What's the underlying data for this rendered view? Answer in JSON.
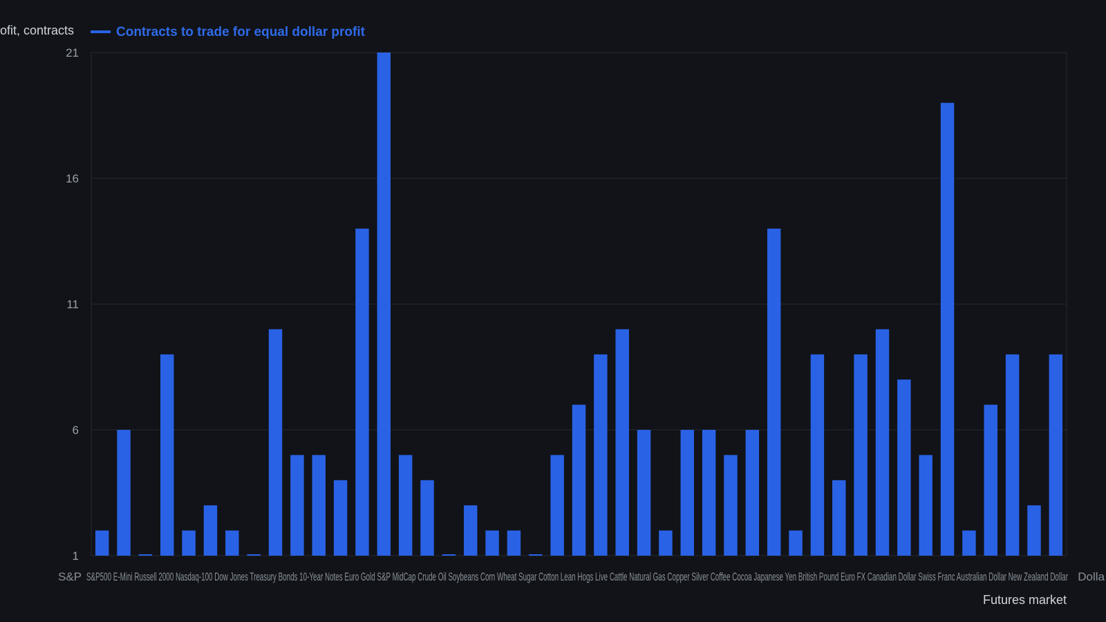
{
  "colors": {
    "background": "#111318",
    "bar": "#2a62e6",
    "legend_text": "#2f6ae8",
    "grid": "#262a33",
    "axis_text": "#9aa0aa"
  },
  "legend": {
    "y_label_fragment": "ofit, contracts",
    "series_label": "Contracts to trade for equal dollar profit"
  },
  "chart_data": {
    "type": "bar",
    "title": "",
    "xlabel": "Futures market",
    "ylabel": "ofit, contracts",
    "ylim": [
      1,
      21
    ],
    "yticks": [
      1,
      6,
      11,
      16,
      21
    ],
    "grid": true,
    "legend_position": "top-left",
    "x_tick_first": "S&P",
    "x_tick_last": "Dolla",
    "x_ticks_overlapping": "S&P500 E-Mini Russell 2000 Nasdaq-100 Dow Jones Treasury Bonds 10-Year Notes Euro Gold S&P MidCap Crude Oil Soybeans Corn Wheat Sugar Cotton Lean Hogs Live Cattle Natural Gas Copper Silver Coffee Cocoa Japanese Yen British Pound Euro FX Canadian Dollar Swiss Franc Australian Dollar New Zealand Dollar",
    "series": [
      {
        "name": "Contracts to trade for equal dollar profit",
        "values": [
          2,
          6,
          1,
          9,
          2,
          3,
          2,
          1,
          10,
          5,
          5,
          4,
          14,
          21,
          5,
          4,
          1,
          3,
          2,
          2,
          1,
          5,
          7,
          9,
          10,
          6,
          2,
          6,
          6,
          5,
          6,
          14,
          2,
          9,
          4,
          9,
          10,
          8,
          5,
          19,
          2,
          7,
          9,
          3,
          9
        ]
      }
    ]
  }
}
